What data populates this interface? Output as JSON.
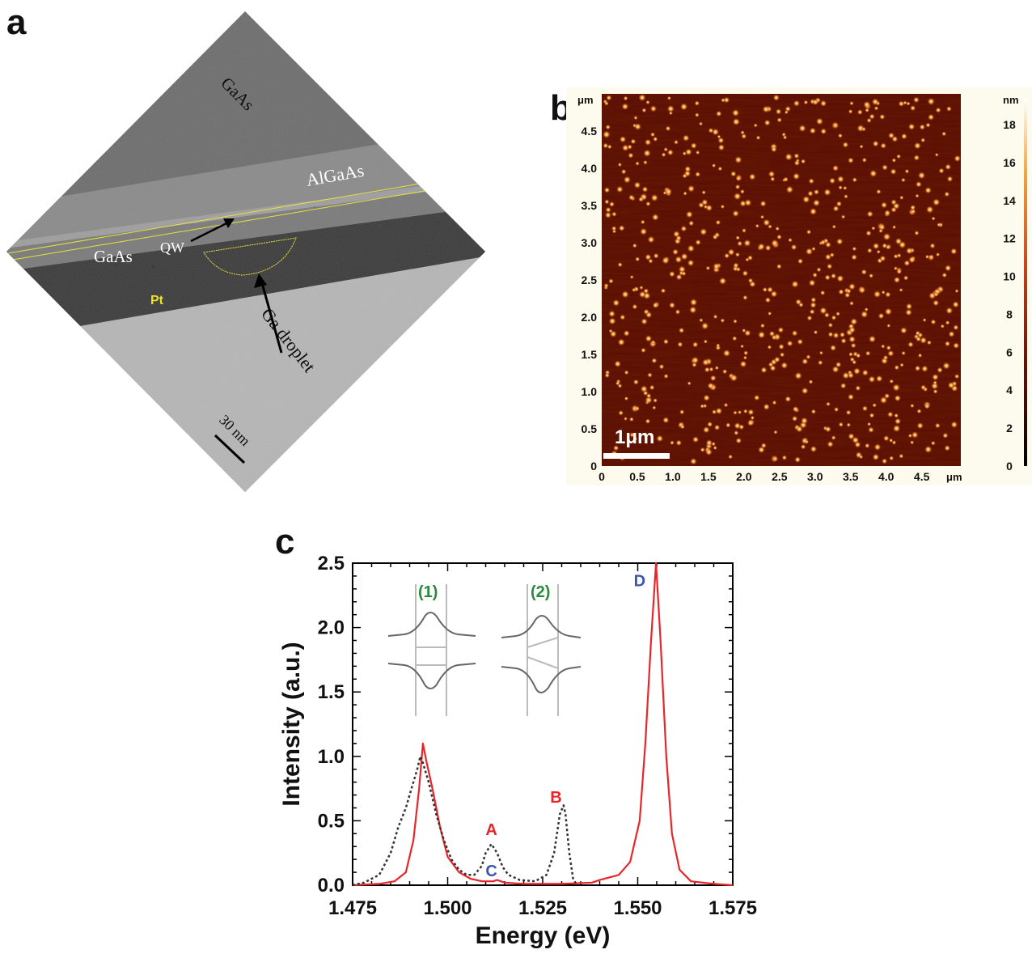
{
  "panel_a": {
    "letter": "a",
    "labels": {
      "gaas_top": "GaAs",
      "algaas": "AlGaAs",
      "gaas_mid": "GaAs",
      "qw": "QW",
      "pt": "Pt",
      "ga_droplet": "Ga droplet",
      "scale_bar": "30 nm"
    }
  },
  "panel_b": {
    "letter": "b",
    "y_unit": "μm",
    "x_unit": "μm",
    "y_ticks": [
      "4.5",
      "4.0",
      "3.5",
      "3.0",
      "2.5",
      "2.0",
      "1.5",
      "1.0",
      "0.5",
      "0"
    ],
    "x_ticks": [
      "0",
      "0.5",
      "1.0",
      "1.5",
      "2.0",
      "2.5",
      "3.0",
      "3.5",
      "4.0",
      "4.5"
    ],
    "scale_bar": "1μm",
    "colorbar_unit": "nm",
    "colorbar_ticks": [
      "18",
      "16",
      "14",
      "12",
      "10",
      "8",
      "6",
      "4",
      "2",
      "0"
    ],
    "colors": {
      "background": "#fdfbee",
      "map_dark": "#5a0c04",
      "dot_core": "#fff4c8",
      "dot_halo": "#e06a18"
    }
  },
  "panel_c": {
    "letter": "c",
    "chart_data": {
      "type": "line",
      "xlabel": "Energy (eV)",
      "ylabel": "Intensity (a.u.)",
      "xlim": [
        1.475,
        1.575
      ],
      "ylim": [
        0,
        2.5
      ],
      "x_ticks": [
        "1.475",
        "1.500",
        "1.525",
        "1.550",
        "1.575"
      ],
      "y_ticks": [
        "0.0",
        "0.5",
        "1.0",
        "1.5",
        "2.0",
        "2.5"
      ],
      "series": [
        {
          "style": "solid",
          "color": "#e8262a",
          "points": [
            [
              1.475,
              0.0
            ],
            [
              1.482,
              0.01
            ],
            [
              1.486,
              0.03
            ],
            [
              1.489,
              0.1
            ],
            [
              1.491,
              0.35
            ],
            [
              1.4925,
              0.75
            ],
            [
              1.4935,
              1.1
            ],
            [
              1.4945,
              0.95
            ],
            [
              1.496,
              0.75
            ],
            [
              1.498,
              0.45
            ],
            [
              1.5,
              0.22
            ],
            [
              1.503,
              0.1
            ],
            [
              1.506,
              0.05
            ],
            [
              1.509,
              0.03
            ],
            [
              1.512,
              0.03
            ],
            [
              1.513,
              0.04
            ],
            [
              1.515,
              0.02
            ],
            [
              1.52,
              0.01
            ],
            [
              1.53,
              0.01
            ],
            [
              1.538,
              0.02
            ],
            [
              1.54,
              0.04
            ],
            [
              1.545,
              0.08
            ],
            [
              1.548,
              0.18
            ],
            [
              1.5505,
              0.5
            ],
            [
              1.552,
              1.1
            ],
            [
              1.5535,
              1.9
            ],
            [
              1.5548,
              2.5
            ],
            [
              1.556,
              1.9
            ],
            [
              1.5575,
              1.0
            ],
            [
              1.559,
              0.4
            ],
            [
              1.561,
              0.12
            ],
            [
              1.564,
              0.03
            ],
            [
              1.57,
              0.01
            ],
            [
              1.575,
              0.0
            ]
          ]
        },
        {
          "style": "dotted",
          "color": "#333333",
          "points": [
            [
              1.475,
              0.0
            ],
            [
              1.478,
              0.02
            ],
            [
              1.482,
              0.08
            ],
            [
              1.485,
              0.25
            ],
            [
              1.487,
              0.45
            ],
            [
              1.489,
              0.6
            ],
            [
              1.4905,
              0.75
            ],
            [
              1.492,
              0.9
            ],
            [
              1.4928,
              1.0
            ],
            [
              1.4935,
              0.95
            ],
            [
              1.495,
              0.8
            ],
            [
              1.497,
              0.55
            ],
            [
              1.499,
              0.35
            ],
            [
              1.501,
              0.2
            ],
            [
              1.503,
              0.12
            ],
            [
              1.505,
              0.08
            ],
            [
              1.507,
              0.08
            ],
            [
              1.509,
              0.15
            ],
            [
              1.51,
              0.25
            ],
            [
              1.5115,
              0.32
            ],
            [
              1.513,
              0.25
            ],
            [
              1.5145,
              0.14
            ],
            [
              1.516,
              0.08
            ],
            [
              1.519,
              0.04
            ],
            [
              1.523,
              0.03
            ],
            [
              1.526,
              0.08
            ],
            [
              1.528,
              0.25
            ],
            [
              1.5295,
              0.55
            ],
            [
              1.5305,
              0.62
            ],
            [
              1.531,
              0.55
            ],
            [
              1.532,
              0.25
            ],
            [
              1.533,
              0.05
            ],
            [
              1.534,
              0.0
            ]
          ]
        }
      ],
      "annotations": [
        {
          "text": "A",
          "x": 1.5115,
          "y": 0.39,
          "color": "#e8262a"
        },
        {
          "text": "B",
          "x": 1.5285,
          "y": 0.64,
          "color": "#e8262a"
        },
        {
          "text": "C",
          "x": 1.5115,
          "y": 0.07,
          "color": "#3a55b5"
        },
        {
          "text": "D",
          "x": 1.5505,
          "y": 2.32,
          "color": "#3a55b5"
        }
      ],
      "insets": [
        {
          "text": "(1)",
          "color": "#2a8a3a"
        },
        {
          "text": "(2)",
          "color": "#2a8a3a"
        }
      ]
    }
  }
}
